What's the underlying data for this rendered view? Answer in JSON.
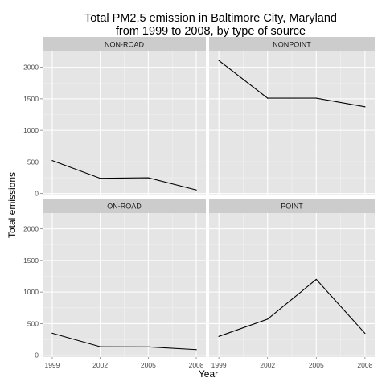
{
  "chart_data": {
    "type": "line",
    "title_lines": [
      "Total PM2.5 emission in Baltimore City, Maryland",
      "from 1999 to 2008, by type of source"
    ],
    "xlabel": "Year",
    "ylabel": "Total emissions",
    "x": [
      1999,
      2002,
      2005,
      2008
    ],
    "x_ticks": [
      "1999",
      "2002",
      "2005",
      "2008"
    ],
    "y_ticks": [
      "0",
      "500",
      "1000",
      "1500",
      "2000"
    ],
    "xlim": [
      1998.4,
      2008.6
    ],
    "ylim": [
      -30,
      2250
    ],
    "grid": true,
    "panels": [
      {
        "name": "NON-ROAD",
        "values": [
          522,
          241,
          249,
          56
        ]
      },
      {
        "name": "NONPOINT",
        "values": [
          2108,
          1510,
          1510,
          1373
        ]
      },
      {
        "name": "ON-ROAD",
        "values": [
          347,
          134,
          131,
          88
        ]
      },
      {
        "name": "POINT",
        "values": [
          297,
          570,
          1200,
          345
        ]
      }
    ],
    "colors": {
      "panel_bg": "#e5e5e5",
      "strip_bg": "#cccccc",
      "grid_major": "#ffffff",
      "grid_minor": "#f2f2f2",
      "line": "#000000"
    }
  }
}
